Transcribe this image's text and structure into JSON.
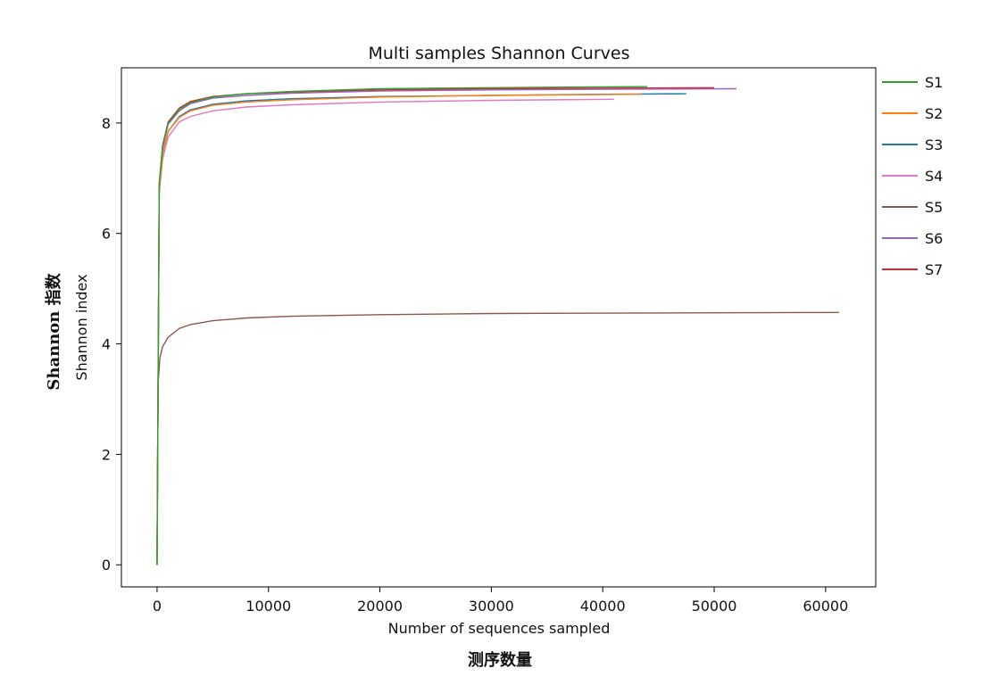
{
  "chart_data": {
    "type": "line",
    "title": "Multi samples Shannon Curves",
    "xlabel": "Number of sequences sampled",
    "ylabel": "Shannon index",
    "xlabel_cn": "测序数量",
    "ylabel_cn": "Shannon 指数",
    "xlim": [
      -3200,
      64500
    ],
    "ylim": [
      -0.4,
      9.0
    ],
    "xticks": [
      0,
      10000,
      20000,
      30000,
      40000,
      50000,
      60000
    ],
    "xtick_labels": [
      "0",
      "10000",
      "20000",
      "30000",
      "40000",
      "50000",
      "60000"
    ],
    "yticks": [
      0,
      2,
      4,
      6,
      8
    ],
    "ytick_labels": [
      "0",
      "2",
      "4",
      "6",
      "8"
    ],
    "grid": false,
    "legend_position": "right",
    "series": [
      {
        "name": "S1",
        "color": "#2ca02c",
        "x": [
          0,
          200,
          500,
          1000,
          2000,
          3000,
          5000,
          8000,
          12000,
          20000,
          30000,
          44000
        ],
        "y": [
          0,
          6.9,
          7.6,
          8.0,
          8.25,
          8.37,
          8.47,
          8.53,
          8.57,
          8.62,
          8.64,
          8.66
        ]
      },
      {
        "name": "S2",
        "color": "#ff7f0e",
        "x": [
          0,
          200,
          500,
          1000,
          2000,
          3000,
          5000,
          8000,
          12000,
          20000,
          30000,
          43500
        ],
        "y": [
          0,
          6.8,
          7.45,
          7.85,
          8.1,
          8.22,
          8.32,
          8.38,
          8.42,
          8.47,
          8.5,
          8.52
        ]
      },
      {
        "name": "S3",
        "color": "#1f77b4",
        "x": [
          0,
          200,
          500,
          1000,
          2000,
          3000,
          5000,
          8000,
          12000,
          20000,
          30000,
          40000,
          47500
        ],
        "y": [
          0,
          6.8,
          7.45,
          7.85,
          8.12,
          8.24,
          8.34,
          8.4,
          8.44,
          8.48,
          8.5,
          8.52,
          8.53
        ]
      },
      {
        "name": "S4",
        "color": "#e377c2",
        "x": [
          0,
          200,
          500,
          1000,
          2000,
          3000,
          5000,
          8000,
          12000,
          20000,
          30000,
          41000
        ],
        "y": [
          0,
          6.75,
          7.35,
          7.75,
          8.02,
          8.12,
          8.22,
          8.29,
          8.33,
          8.38,
          8.41,
          8.43
        ]
      },
      {
        "name": "S5",
        "color": "#8c564b",
        "x": [
          0,
          100,
          250,
          500,
          1000,
          2000,
          3000,
          5000,
          8000,
          12000,
          20000,
          30000,
          45000,
          61200
        ],
        "y": [
          0,
          3.3,
          3.75,
          3.95,
          4.12,
          4.28,
          4.35,
          4.42,
          4.47,
          4.5,
          4.53,
          4.55,
          4.56,
          4.57
        ]
      },
      {
        "name": "S6",
        "color": "#9467bd",
        "x": [
          0,
          200,
          500,
          1000,
          2000,
          3000,
          5000,
          8000,
          12000,
          20000,
          30000,
          40000,
          52000
        ],
        "y": [
          0,
          6.9,
          7.55,
          7.98,
          8.22,
          8.35,
          8.45,
          8.5,
          8.54,
          8.58,
          8.6,
          8.61,
          8.62
        ]
      },
      {
        "name": "S7",
        "color": "#d62728",
        "x": [
          0,
          200,
          500,
          1000,
          2000,
          3000,
          5000,
          8000,
          12000,
          20000,
          30000,
          40000,
          50000
        ],
        "y": [
          0,
          6.9,
          7.6,
          8.02,
          8.27,
          8.39,
          8.48,
          8.53,
          8.56,
          8.6,
          8.62,
          8.63,
          8.64
        ]
      }
    ]
  }
}
